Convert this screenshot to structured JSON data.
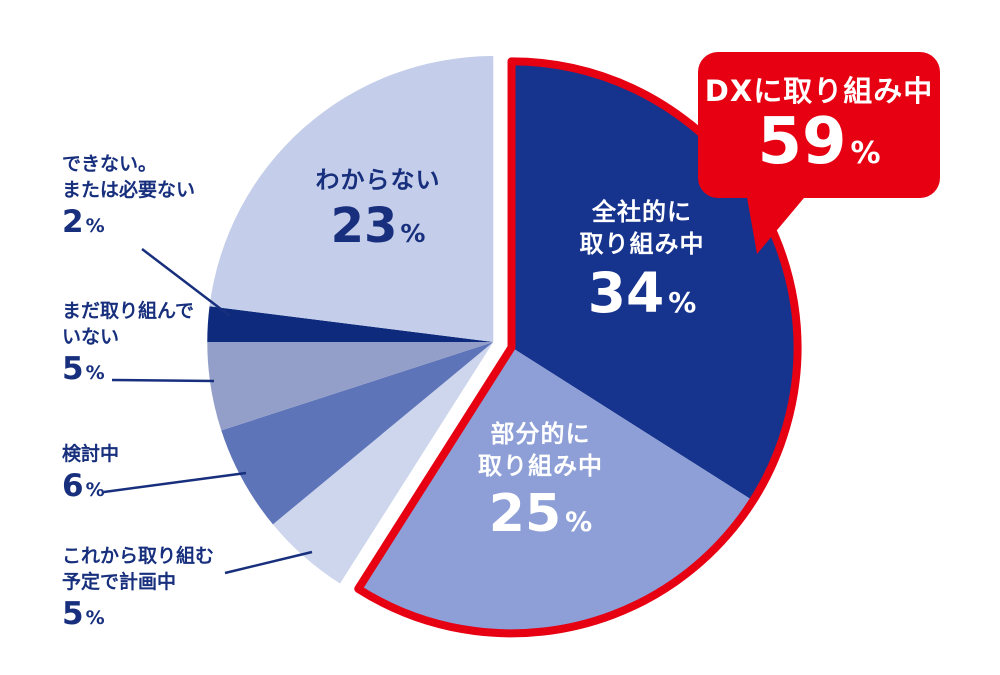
{
  "chart_data": {
    "type": "pie",
    "title": "",
    "unit": "%",
    "start_angle_deg": 0,
    "direction": "clockwise",
    "slices": [
      {
        "label": "全社的に取り組み中",
        "value": 34,
        "color": "#16338e",
        "group": "dx"
      },
      {
        "label": "部分的に取り組み中",
        "value": 25,
        "color": "#8d9fd6",
        "group": "dx"
      },
      {
        "label": "これから取り組む予定で計画中",
        "value": 5,
        "color": "#cdd6ec",
        "group": "other"
      },
      {
        "label": "検討中",
        "value": 6,
        "color": "#5e74b8",
        "group": "other"
      },
      {
        "label": "まだ取り組んでいない",
        "value": 5,
        "color": "#939fc9",
        "group": "other"
      },
      {
        "label": "できない。または必要ない",
        "value": 2,
        "color": "#0d2a7d",
        "group": "other"
      },
      {
        "label": "わからない",
        "value": 23,
        "color": "#c4cde9",
        "group": "other"
      }
    ],
    "callout_group": {
      "label": "DXに取り組み中",
      "value": 59,
      "group": "dx"
    }
  },
  "colors": {
    "red": "#e60012",
    "navy": "#172f7d",
    "white": "#ffffff"
  },
  "callout": {
    "title": "DXに取り組み中",
    "value": "59",
    "unit": "%"
  },
  "inner_labels": [
    {
      "lines": [
        "わからない"
      ],
      "value": "23",
      "unit": "%"
    },
    {
      "lines": [
        "全社的に",
        "取り組み中"
      ],
      "value": "34",
      "unit": "%"
    },
    {
      "lines": [
        "部分的に",
        "取り組み中"
      ],
      "value": "25",
      "unit": "%"
    }
  ],
  "outside_labels": [
    {
      "lines": [
        "できない。",
        "または必要ない"
      ],
      "value": "2",
      "unit": "%"
    },
    {
      "lines": [
        "まだ取り組んで",
        "いない"
      ],
      "value": "5",
      "unit": "%"
    },
    {
      "lines": [
        "検討中"
      ],
      "value": "6",
      "unit": "%"
    },
    {
      "lines": [
        "これから取り組む",
        "予定で計画中"
      ],
      "value": "5",
      "unit": "%"
    }
  ]
}
